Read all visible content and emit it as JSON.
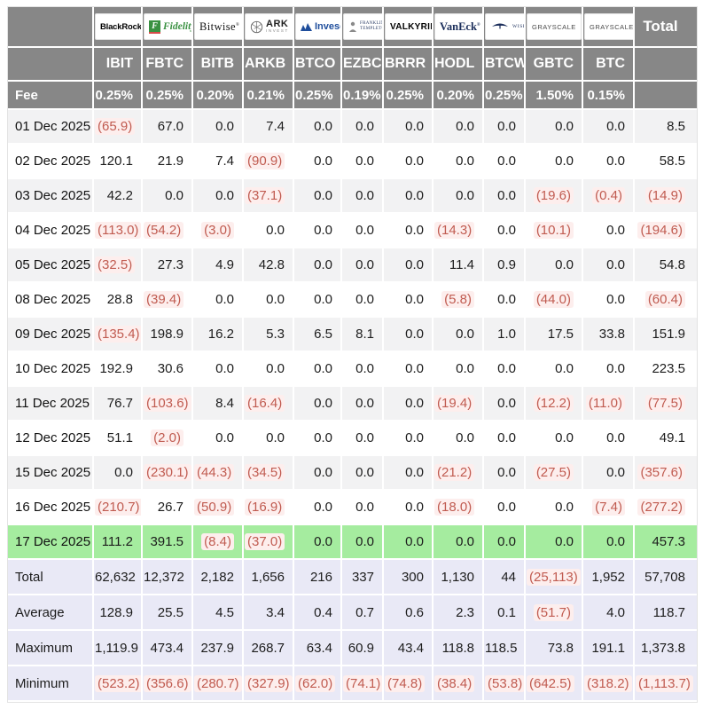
{
  "colors": {
    "header_bg": "#878787",
    "row_alt_bg": "#f2f2f3",
    "highlight_row_bg": "#a5ec9f",
    "summary_bg": "#e9e9f6",
    "negative_text": "#c05b50",
    "negative_highlight_bg": "#fdeeed"
  },
  "header": {
    "fee_label": "Fee",
    "total_column_label": "Total"
  },
  "chart_data": {
    "type": "table",
    "columns": [
      "IBIT",
      "FBTC",
      "BITB",
      "ARKB",
      "BTCO",
      "EZBC",
      "BRRR",
      "HODL",
      "BTCW",
      "GBTC",
      "BTC"
    ],
    "issuers": [
      "BlackRock",
      "Fidelity",
      "Bitwise",
      "ARK Invest",
      "Invesco",
      "Franklin Templeton",
      "Valkyrie",
      "VanEck",
      "WisdomTree",
      "Grayscale",
      "Grayscale"
    ],
    "issuer_icons": [
      "blackrock-logo",
      "fidelity-logo",
      "bitwise-logo",
      "ark-invest-logo",
      "invesco-logo",
      "franklin-templeton-logo",
      "valkyrie-logo",
      "vaneck-logo",
      "wisdomtree-logo",
      "grayscale-logo",
      "grayscale-logo"
    ],
    "fees": [
      "0.25%",
      "0.25%",
      "0.20%",
      "0.21%",
      "0.25%",
      "0.19%",
      "0.25%",
      "0.20%",
      "0.25%",
      "1.50%",
      "0.15%"
    ],
    "rows": [
      {
        "date": "01 Dec 2025",
        "values": [
          "(65.9)",
          "67.0",
          "0.0",
          "7.4",
          "0.0",
          "0.0",
          "0.0",
          "0.0",
          "0.0",
          "0.0",
          "0.0"
        ],
        "total": "8.5"
      },
      {
        "date": "02 Dec 2025",
        "values": [
          "120.1",
          "21.9",
          "7.4",
          "(90.9)",
          "0.0",
          "0.0",
          "0.0",
          "0.0",
          "0.0",
          "0.0",
          "0.0"
        ],
        "total": "58.5"
      },
      {
        "date": "03 Dec 2025",
        "values": [
          "42.2",
          "0.0",
          "0.0",
          "(37.1)",
          "0.0",
          "0.0",
          "0.0",
          "0.0",
          "0.0",
          "(19.6)",
          "(0.4)"
        ],
        "total": "(14.9)"
      },
      {
        "date": "04 Dec 2025",
        "values": [
          "(113.0)",
          "(54.2)",
          "(3.0)",
          "0.0",
          "0.0",
          "0.0",
          "0.0",
          "(14.3)",
          "0.0",
          "(10.1)",
          "0.0"
        ],
        "total": "(194.6)"
      },
      {
        "date": "05 Dec 2025",
        "values": [
          "(32.5)",
          "27.3",
          "4.9",
          "42.8",
          "0.0",
          "0.0",
          "0.0",
          "11.4",
          "0.9",
          "0.0",
          "0.0"
        ],
        "total": "54.8"
      },
      {
        "date": "08 Dec 2025",
        "values": [
          "28.8",
          "(39.4)",
          "0.0",
          "0.0",
          "0.0",
          "0.0",
          "0.0",
          "(5.8)",
          "0.0",
          "(44.0)",
          "0.0"
        ],
        "total": "(60.4)"
      },
      {
        "date": "09 Dec 2025",
        "values": [
          "(135.4)",
          "198.9",
          "16.2",
          "5.3",
          "6.5",
          "8.1",
          "0.0",
          "0.0",
          "1.0",
          "17.5",
          "33.8"
        ],
        "total": "151.9"
      },
      {
        "date": "10 Dec 2025",
        "values": [
          "192.9",
          "30.6",
          "0.0",
          "0.0",
          "0.0",
          "0.0",
          "0.0",
          "0.0",
          "0.0",
          "0.0",
          "0.0"
        ],
        "total": "223.5"
      },
      {
        "date": "11 Dec 2025",
        "values": [
          "76.7",
          "(103.6)",
          "8.4",
          "(16.4)",
          "0.0",
          "0.0",
          "0.0",
          "(19.4)",
          "0.0",
          "(12.2)",
          "(11.0)"
        ],
        "total": "(77.5)"
      },
      {
        "date": "12 Dec 2025",
        "values": [
          "51.1",
          "(2.0)",
          "0.0",
          "0.0",
          "0.0",
          "0.0",
          "0.0",
          "0.0",
          "0.0",
          "0.0",
          "0.0"
        ],
        "total": "49.1"
      },
      {
        "date": "15 Dec 2025",
        "values": [
          "0.0",
          "(230.1)",
          "(44.3)",
          "(34.5)",
          "0.0",
          "0.0",
          "0.0",
          "(21.2)",
          "0.0",
          "(27.5)",
          "0.0"
        ],
        "total": "(357.6)"
      },
      {
        "date": "16 Dec 2025",
        "values": [
          "(210.7)",
          "26.7",
          "(50.9)",
          "(16.9)",
          "0.0",
          "0.0",
          "0.0",
          "(18.0)",
          "0.0",
          "0.0",
          "(7.4)"
        ],
        "total": "(277.2)"
      },
      {
        "date": "17 Dec 2025",
        "highlight": true,
        "values": [
          "111.2",
          "391.5",
          "(8.4)",
          "(37.0)",
          "0.0",
          "0.0",
          "0.0",
          "0.0",
          "0.0",
          "0.0",
          "0.0"
        ],
        "total": "457.3"
      }
    ],
    "summary": [
      {
        "label": "Total",
        "values": [
          "62,632",
          "12,372",
          "2,182",
          "1,656",
          "216",
          "337",
          "300",
          "1,130",
          "44",
          "(25,113)",
          "1,952"
        ],
        "total": "57,708"
      },
      {
        "label": "Average",
        "values": [
          "128.9",
          "25.5",
          "4.5",
          "3.4",
          "0.4",
          "0.7",
          "0.6",
          "2.3",
          "0.1",
          "(51.7)",
          "4.0"
        ],
        "total": "118.7"
      },
      {
        "label": "Maximum",
        "values": [
          "1,119.9",
          "473.4",
          "237.9",
          "268.7",
          "63.4",
          "60.9",
          "43.4",
          "118.8",
          "118.5",
          "73.8",
          "191.1"
        ],
        "total": "1,373.8"
      },
      {
        "label": "Minimum",
        "values": [
          "(523.2)",
          "(356.6)",
          "(280.7)",
          "(327.9)",
          "(62.0)",
          "(74.1)",
          "(74.8)",
          "(38.4)",
          "(53.8)",
          "(642.5)",
          "(318.2)"
        ],
        "total": "(1,113.7)"
      }
    ]
  }
}
